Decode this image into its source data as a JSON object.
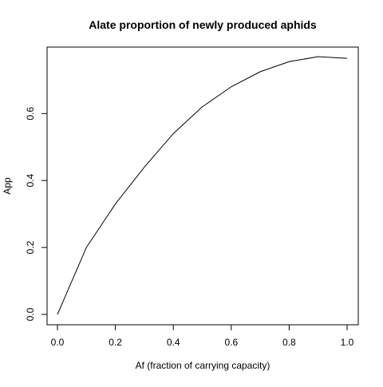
{
  "chart_data": {
    "type": "line",
    "title": "Alate proportion of newly produced aphids",
    "xlabel": "Af (fraction of carrying capacity)",
    "ylabel": "App",
    "xlim": [
      0,
      1
    ],
    "ylim": [
      0,
      0.77
    ],
    "x_ticks": [
      "0.0",
      "0.2",
      "0.4",
      "0.6",
      "0.8",
      "1.0"
    ],
    "y_ticks": [
      "0.0",
      "0.2",
      "0.4",
      "0.6"
    ],
    "grid": false,
    "legend": "none",
    "line_color": "#000000",
    "series": [
      {
        "x": [
          0.0,
          0.1,
          0.2,
          0.3,
          0.4,
          0.5,
          0.6,
          0.7,
          0.8,
          0.9,
          1.0
        ],
        "values": [
          0.0,
          0.2,
          0.33,
          0.44,
          0.54,
          0.62,
          0.68,
          0.725,
          0.755,
          0.77,
          0.765
        ]
      }
    ]
  }
}
